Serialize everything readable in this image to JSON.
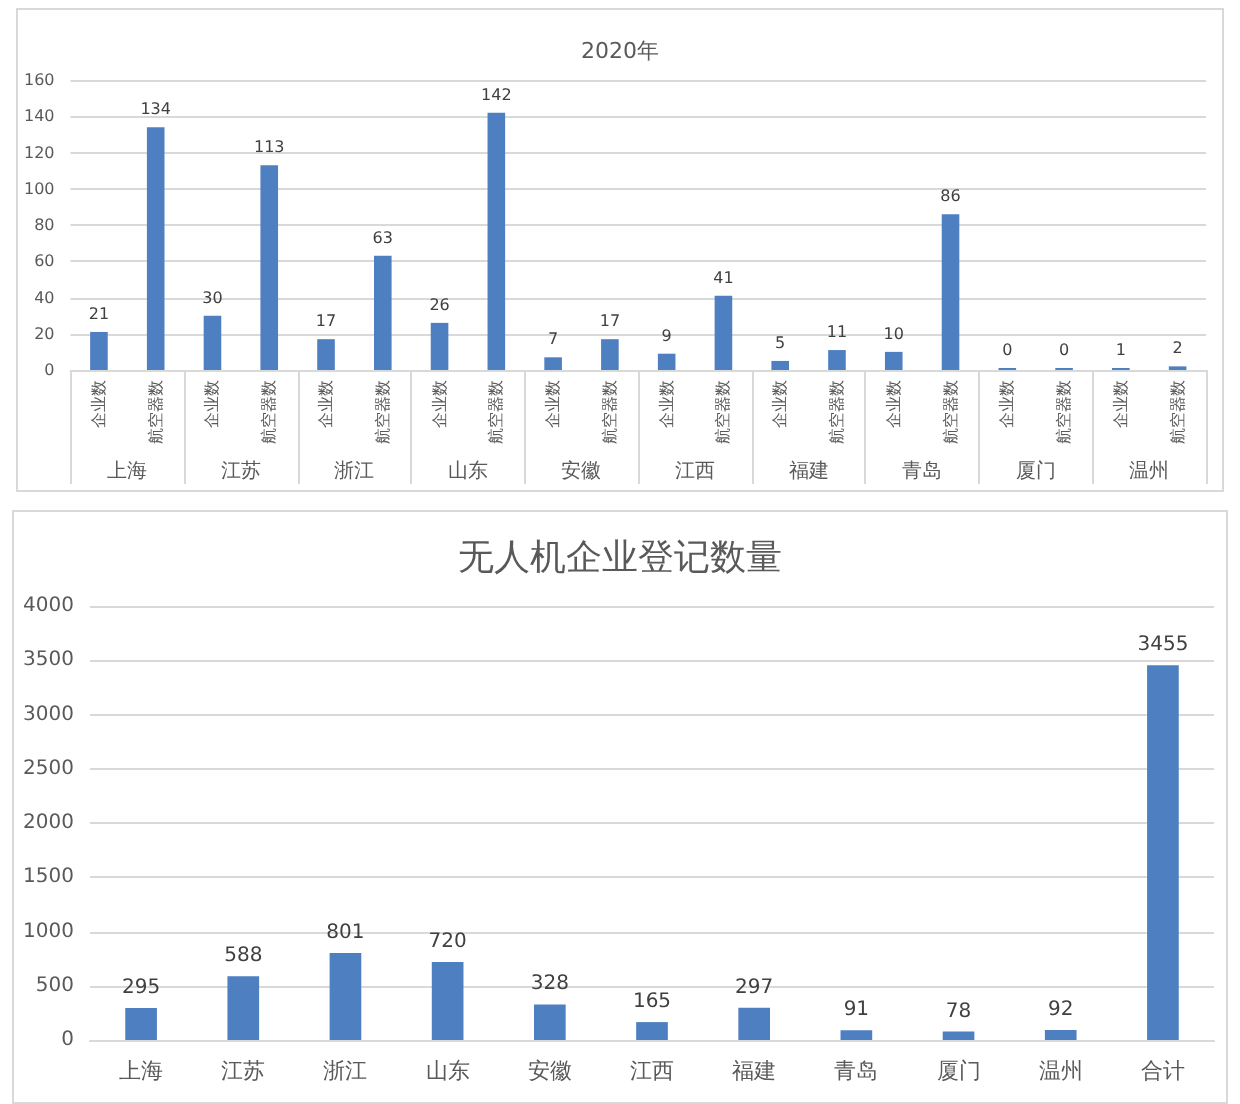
{
  "chart_data": [
    {
      "type": "bar",
      "title": "2020年",
      "categories": [
        "上海",
        "江苏",
        "浙江",
        "山东",
        "安徽",
        "江西",
        "福建",
        "青岛",
        "厦门",
        "温州"
      ],
      "series": [
        {
          "name": "企业数",
          "color": "#4e7fc0",
          "values": [
            21,
            30,
            17,
            26,
            7,
            9,
            5,
            10,
            0,
            1
          ]
        },
        {
          "name": "航空器数",
          "color": "#4e7fc0",
          "values": [
            134,
            113,
            63,
            142,
            17,
            41,
            11,
            86,
            0,
            2
          ]
        }
      ],
      "ylim": [
        0,
        160
      ],
      "yticks": [
        0,
        20,
        40,
        60,
        80,
        100,
        120,
        140,
        160
      ],
      "grid": "y",
      "data_labels": true
    },
    {
      "type": "bar",
      "title": "无人机企业登记数量",
      "categories": [
        "上海",
        "江苏",
        "浙江",
        "山东",
        "安徽",
        "江西",
        "福建",
        "青岛",
        "厦门",
        "温州",
        "合计"
      ],
      "values": [
        295,
        588,
        801,
        720,
        328,
        165,
        297,
        91,
        78,
        92,
        3455
      ],
      "color": "#4e7fc0",
      "ylim": [
        0,
        4000
      ],
      "yticks": [
        0,
        500,
        1000,
        1500,
        2000,
        2500,
        3000,
        3500,
        4000
      ],
      "grid": "y",
      "data_labels": true
    }
  ]
}
